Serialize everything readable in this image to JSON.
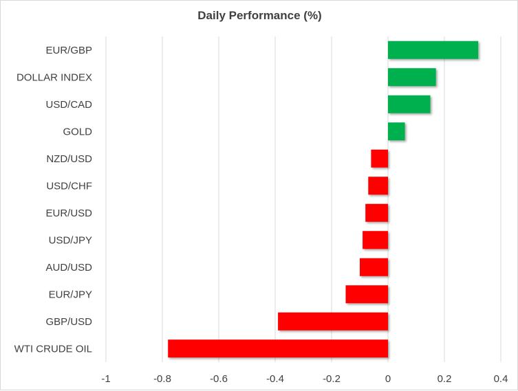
{
  "chart_data": {
    "type": "bar",
    "orientation": "horizontal",
    "title": "Daily Performance  (%)",
    "xlabel": "",
    "ylabel": "",
    "xlim": [
      -1,
      0.4
    ],
    "x_ticks": [
      -1,
      -0.8,
      -0.6,
      -0.4,
      -0.2,
      0,
      0.2,
      0.4
    ],
    "x_tick_labels": [
      "-1",
      "-0.8",
      "-0.6",
      "-0.4",
      "-0.2",
      "0",
      "0.2",
      "0.4"
    ],
    "grid": "vertical",
    "legend": "none",
    "categories": [
      "EUR/GBP",
      "DOLLAR INDEX",
      "USD/CAD",
      "GOLD",
      "NZD/USD",
      "USD/CHF",
      "EUR/USD",
      "USD/JPY",
      "AUD/USD",
      "EUR/JPY",
      "GBP/USD",
      "WTI CRUDE OIL"
    ],
    "values": [
      0.32,
      0.17,
      0.15,
      0.06,
      -0.06,
      -0.07,
      -0.08,
      -0.09,
      -0.1,
      -0.15,
      -0.39,
      -0.78
    ],
    "colors": {
      "positive": "#00b050",
      "negative": "#ff0000",
      "grid": "#d9d9d9",
      "text": "#404040"
    }
  }
}
